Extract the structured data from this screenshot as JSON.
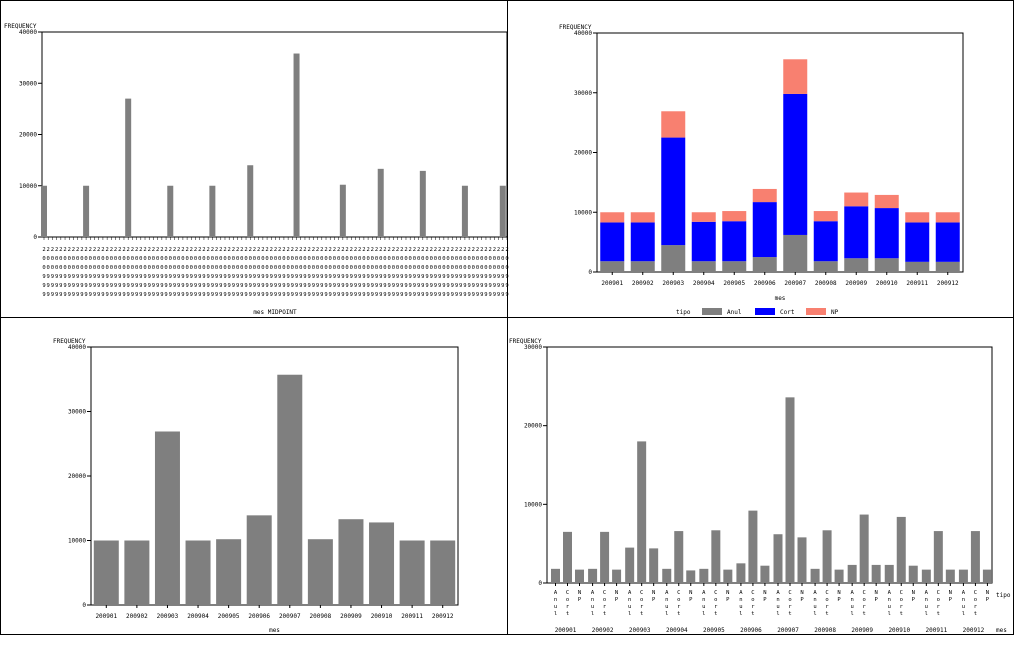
{
  "colors": {
    "grey": "#7f7f7f",
    "blue": "#0000ff",
    "salmon": "#f88070"
  },
  "chart_data": [
    {
      "id": "tl",
      "type": "bar",
      "ylabel": "FREQUENCY",
      "xlabel": "mes MIDPOINT",
      "ylim": [
        0,
        40000
      ],
      "yticks": [
        "0",
        "10000",
        "20000",
        "30000",
        "40000"
      ],
      "tick_label": [
        "2",
        "0",
        "0",
        "9",
        "9",
        "9"
      ],
      "x": [
        0,
        1,
        2,
        3,
        4,
        5,
        6,
        7,
        8,
        9,
        10,
        11,
        12,
        13,
        14,
        15,
        16,
        17,
        18,
        19,
        20,
        21,
        22,
        23,
        24,
        25,
        26,
        27,
        28,
        29,
        30,
        31,
        32,
        33,
        34,
        35,
        36,
        37,
        38,
        39,
        40,
        41,
        42,
        43,
        44,
        45,
        46,
        47,
        48,
        49,
        50,
        51,
        52,
        53,
        54,
        55,
        56,
        57,
        58,
        59,
        60,
        61,
        62,
        63,
        64,
        65,
        66,
        67,
        68,
        69,
        70,
        71,
        72,
        73,
        74,
        75,
        76,
        77,
        78,
        79,
        80,
        81,
        82,
        83,
        84,
        85,
        86,
        87,
        88,
        89,
        90,
        91,
        92,
        93,
        94,
        95,
        96,
        97,
        98,
        99,
        100,
        101,
        102,
        103,
        104,
        105,
        106,
        107,
        108,
        109,
        110
      ],
      "values": [
        10000,
        0,
        0,
        0,
        0,
        0,
        0,
        0,
        0,
        0,
        10000,
        0,
        0,
        0,
        0,
        0,
        0,
        0,
        0,
        0,
        27000,
        0,
        0,
        0,
        0,
        0,
        0,
        0,
        0,
        0,
        10000,
        0,
        0,
        0,
        0,
        0,
        0,
        0,
        0,
        0,
        10000,
        0,
        0,
        0,
        0,
        0,
        0,
        0,
        0,
        14000,
        0,
        0,
        0,
        0,
        0,
        0,
        0,
        0,
        0,
        0,
        35800,
        0,
        0,
        0,
        0,
        0,
        0,
        0,
        0,
        0,
        0,
        10200,
        0,
        0,
        0,
        0,
        0,
        0,
        0,
        0,
        13300,
        0,
        0,
        0,
        0,
        0,
        0,
        0,
        0,
        0,
        12900,
        0,
        0,
        0,
        0,
        0,
        0,
        0,
        0,
        0,
        10000,
        0,
        0,
        0,
        0,
        0,
        0,
        0,
        0,
        10000,
        0
      ]
    },
    {
      "id": "tr",
      "type": "bar",
      "stacked": true,
      "ylabel": "FREQUENCY",
      "xlabel": "mes",
      "legend_title": "tipo",
      "ylim": [
        0,
        40000
      ],
      "yticks": [
        "0",
        "10000",
        "20000",
        "30000",
        "40000"
      ],
      "categories": [
        "200901",
        "200902",
        "200903",
        "200904",
        "200905",
        "200906",
        "200907",
        "200908",
        "200909",
        "200910",
        "200911",
        "200912"
      ],
      "series": [
        {
          "name": "Anul",
          "color": "#7f7f7f",
          "values": [
            1800,
            1800,
            4500,
            1800,
            1800,
            2500,
            6200,
            1800,
            2300,
            2300,
            1700,
            1700
          ]
        },
        {
          "name": "Cort",
          "color": "#0000ff",
          "values": [
            6500,
            6500,
            18000,
            6600,
            6700,
            9200,
            23600,
            6700,
            8700,
            8400,
            6600,
            6600
          ]
        },
        {
          "name": "NP",
          "color": "#f88070",
          "values": [
            1700,
            1700,
            4400,
            1600,
            1700,
            2200,
            5800,
            1700,
            2300,
            2200,
            1700,
            1700
          ]
        }
      ]
    },
    {
      "id": "bl",
      "type": "bar",
      "ylabel": "FREQUENCY",
      "xlabel": "mes",
      "ylim": [
        0,
        40000
      ],
      "yticks": [
        "0",
        "10000",
        "20000",
        "30000",
        "40000"
      ],
      "categories": [
        "200901",
        "200902",
        "200903",
        "200904",
        "200905",
        "200906",
        "200907",
        "200908",
        "200909",
        "200910",
        "200911",
        "200912"
      ],
      "values": [
        10000,
        10000,
        26900,
        10000,
        10200,
        13900,
        35700,
        10200,
        13300,
        12800,
        10000,
        10000
      ]
    },
    {
      "id": "br",
      "type": "bar",
      "grouped": true,
      "ylabel": "FREQUENCY",
      "xlabel": "mes",
      "group_axis_label": "tipo",
      "ylim": [
        0,
        30000
      ],
      "yticks": [
        "0",
        "10000",
        "20000",
        "30000"
      ],
      "categories": [
        "200901",
        "200902",
        "200903",
        "200904",
        "200905",
        "200906",
        "200907",
        "200908",
        "200909",
        "200910",
        "200911",
        "200912"
      ],
      "subcategories": [
        "Anul",
        "Cort",
        "NP"
      ],
      "values": [
        [
          1800,
          6500,
          1700
        ],
        [
          1800,
          6500,
          1700
        ],
        [
          4500,
          18000,
          4400
        ],
        [
          1800,
          6600,
          1600
        ],
        [
          1800,
          6700,
          1700
        ],
        [
          2500,
          9200,
          2200
        ],
        [
          6200,
          23600,
          5800
        ],
        [
          1800,
          6700,
          1700
        ],
        [
          2300,
          8700,
          2300
        ],
        [
          2300,
          8400,
          2200
        ],
        [
          1700,
          6600,
          1700
        ],
        [
          1700,
          6600,
          1700
        ]
      ]
    }
  ]
}
